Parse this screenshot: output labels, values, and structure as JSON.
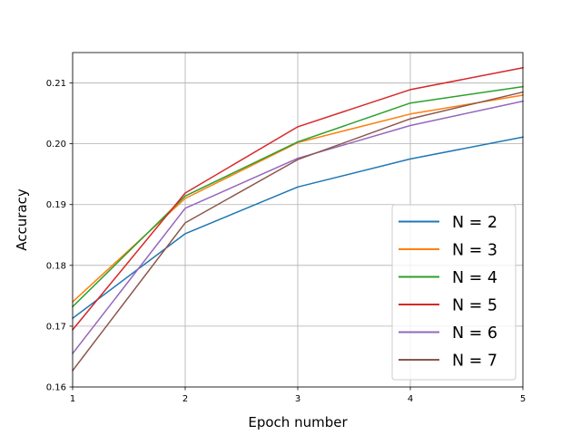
{
  "chart_data": {
    "type": "line",
    "title": "",
    "xlabel": "Epoch number",
    "ylabel": "Accuracy",
    "x": [
      1,
      2,
      3,
      4,
      5
    ],
    "xlim": [
      1,
      5
    ],
    "ylim": [
      0.16,
      0.215
    ],
    "xticks": [
      "1",
      "2",
      "3",
      "4",
      "5"
    ],
    "yticks": [
      0.16,
      0.17,
      0.18,
      0.19,
      0.2,
      0.21
    ],
    "ytick_labels": [
      "0.16",
      "0.17",
      "0.18",
      "0.19",
      "0.20",
      "0.21"
    ],
    "grid": true,
    "legend_position": "lower-right",
    "series": [
      {
        "name": "N = 2",
        "color": "#1f77b4",
        "values": [
          0.1713,
          0.1852,
          0.1929,
          0.1975,
          0.2011
        ]
      },
      {
        "name": "N = 3",
        "color": "#ff7f0e",
        "values": [
          0.174,
          0.191,
          0.2002,
          0.2049,
          0.208
        ]
      },
      {
        "name": "N = 4",
        "color": "#2ca02c",
        "values": [
          0.1732,
          0.1914,
          0.2003,
          0.2067,
          0.2094
        ]
      },
      {
        "name": "N = 5",
        "color": "#d62728",
        "values": [
          0.1694,
          0.1919,
          0.2028,
          0.2089,
          0.2125
        ]
      },
      {
        "name": "N = 6",
        "color": "#9467bd",
        "values": [
          0.1655,
          0.1894,
          0.1976,
          0.203,
          0.207
        ]
      },
      {
        "name": "N = 7",
        "color": "#8c564b",
        "values": [
          0.1627,
          0.187,
          0.1974,
          0.2041,
          0.2085
        ]
      }
    ]
  }
}
